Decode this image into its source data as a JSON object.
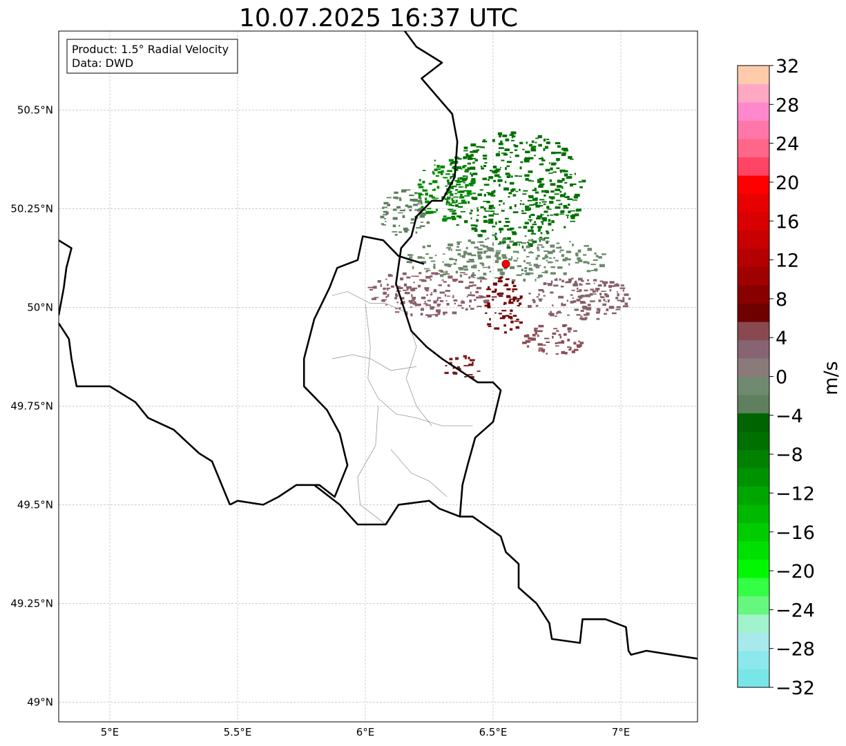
{
  "title": "10.07.2025 16:37 UTC",
  "info_box": {
    "line1": "Product: 1.5° Radial Velocity",
    "line2": "Data: DWD"
  },
  "map": {
    "lon_range": [
      4.8,
      7.3
    ],
    "lat_range": [
      48.95,
      50.7
    ],
    "lon_ticks": [
      {
        "value": 5.0,
        "label": "5°E"
      },
      {
        "value": 5.5,
        "label": "5.5°E"
      },
      {
        "value": 6.0,
        "label": "6°E"
      },
      {
        "value": 6.5,
        "label": "6.5°E"
      },
      {
        "value": 7.0,
        "label": "7°E"
      }
    ],
    "lat_ticks": [
      {
        "value": 49.0,
        "label": "49°N"
      },
      {
        "value": 49.25,
        "label": "49.25°N"
      },
      {
        "value": 49.5,
        "label": "49.5°N"
      },
      {
        "value": 49.75,
        "label": "49.75°N"
      },
      {
        "value": 50.0,
        "label": "50°N"
      },
      {
        "value": 50.25,
        "label": "50.25°N"
      },
      {
        "value": 50.5,
        "label": "50.5°N"
      }
    ],
    "grid": true,
    "radar_site": {
      "lon": 6.55,
      "lat": 50.11,
      "color": "#ff0000"
    },
    "borders": [
      [
        [
          6.12,
          50.73
        ],
        [
          6.2,
          50.66
        ],
        [
          6.3,
          50.62
        ],
        [
          6.22,
          50.58
        ],
        [
          6.3,
          50.52
        ],
        [
          6.34,
          50.49
        ],
        [
          6.36,
          50.42
        ],
        [
          6.35,
          50.33
        ],
        [
          6.3,
          50.27
        ],
        [
          6.26,
          50.27
        ],
        [
          6.2,
          50.23
        ],
        [
          6.18,
          50.18
        ],
        [
          6.14,
          50.15
        ],
        [
          6.12,
          50.06
        ],
        [
          6.15,
          50.0
        ],
        [
          6.18,
          49.94
        ],
        [
          6.24,
          49.9
        ],
        [
          6.3,
          49.87
        ],
        [
          6.37,
          49.84
        ],
        [
          6.44,
          49.81
        ],
        [
          6.5,
          49.81
        ],
        [
          6.53,
          49.79
        ],
        [
          6.5,
          49.71
        ],
        [
          6.43,
          49.67
        ],
        [
          6.4,
          49.6
        ],
        [
          6.38,
          49.55
        ],
        [
          6.37,
          49.47
        ]
      ],
      [
        [
          6.23,
          50.11
        ],
        [
          6.13,
          50.13
        ],
        [
          6.07,
          50.17
        ],
        [
          5.99,
          50.18
        ],
        [
          5.97,
          50.12
        ],
        [
          5.89,
          50.1
        ],
        [
          5.86,
          50.05
        ],
        [
          5.8,
          49.97
        ],
        [
          5.76,
          49.87
        ],
        [
          5.76,
          49.8
        ],
        [
          5.85,
          49.74
        ],
        [
          5.9,
          49.68
        ],
        [
          5.93,
          49.6
        ],
        [
          5.88,
          49.52
        ],
        [
          5.82,
          49.55
        ],
        [
          5.73,
          49.55
        ],
        [
          5.66,
          49.52
        ],
        [
          5.6,
          49.5
        ],
        [
          5.5,
          49.51
        ],
        [
          5.47,
          49.5
        ]
      ],
      [
        [
          5.8,
          49.55
        ],
        [
          5.9,
          49.5
        ],
        [
          5.97,
          49.45
        ],
        [
          6.08,
          49.45
        ],
        [
          6.13,
          49.5
        ],
        [
          6.25,
          49.51
        ],
        [
          6.29,
          49.49
        ],
        [
          6.37,
          49.47
        ],
        [
          6.42,
          49.47
        ],
        [
          6.53,
          49.42
        ],
        [
          6.55,
          49.38
        ],
        [
          6.6,
          49.35
        ],
        [
          6.6,
          49.29
        ],
        [
          6.67,
          49.25
        ],
        [
          6.72,
          49.2
        ],
        [
          6.73,
          49.16
        ],
        [
          6.84,
          49.15
        ],
        [
          6.85,
          49.21
        ],
        [
          6.94,
          49.21
        ],
        [
          7.02,
          49.19
        ],
        [
          7.03,
          49.13
        ],
        [
          7.04,
          49.12
        ],
        [
          7.1,
          49.13
        ],
        [
          7.2,
          49.12
        ],
        [
          7.3,
          49.11
        ]
      ],
      [
        [
          5.47,
          49.5
        ],
        [
          5.4,
          49.61
        ],
        [
          5.35,
          49.63
        ],
        [
          5.3,
          49.66
        ],
        [
          5.25,
          49.69
        ],
        [
          5.15,
          49.72
        ],
        [
          5.1,
          49.76
        ],
        [
          5.0,
          49.8
        ],
        [
          4.87,
          49.8
        ],
        [
          4.85,
          49.87
        ],
        [
          4.84,
          49.92
        ],
        [
          4.8,
          49.96
        ]
      ],
      [
        [
          4.8,
          49.98
        ],
        [
          4.82,
          50.05
        ],
        [
          4.83,
          50.1
        ],
        [
          4.85,
          50.15
        ],
        [
          4.8,
          50.17
        ]
      ]
    ],
    "regions": [
      [
        [
          5.87,
          50.03
        ],
        [
          5.93,
          50.04
        ],
        [
          6.02,
          50.01
        ],
        [
          6.08,
          50.01
        ],
        [
          6.15,
          49.99
        ]
      ],
      [
        [
          5.87,
          49.87
        ],
        [
          5.95,
          49.88
        ],
        [
          6.02,
          49.87
        ],
        [
          6.1,
          49.84
        ],
        [
          6.2,
          49.85
        ]
      ],
      [
        [
          6.0,
          50.01
        ],
        [
          6.02,
          49.9
        ],
        [
          6.01,
          49.82
        ],
        [
          6.05,
          49.77
        ],
        [
          6.12,
          49.73
        ],
        [
          6.2,
          49.72
        ],
        [
          6.3,
          49.7
        ],
        [
          6.42,
          49.7
        ]
      ],
      [
        [
          6.17,
          49.96
        ],
        [
          6.2,
          49.9
        ],
        [
          6.16,
          49.82
        ],
        [
          6.2,
          49.75
        ],
        [
          6.26,
          49.7
        ]
      ],
      [
        [
          6.05,
          49.75
        ],
        [
          6.04,
          49.65
        ],
        [
          5.97,
          49.57
        ],
        [
          5.98,
          49.5
        ],
        [
          6.08,
          49.45
        ]
      ],
      [
        [
          6.1,
          49.64
        ],
        [
          6.18,
          49.58
        ],
        [
          6.25,
          49.56
        ],
        [
          6.32,
          49.52
        ]
      ]
    ],
    "echoes": [
      {
        "lon_min": 6.3,
        "lon_max": 6.85,
        "lat_min": 50.15,
        "lat_max": 50.45,
        "color": "#007000"
      },
      {
        "lon_min": 6.2,
        "lon_max": 6.42,
        "lat_min": 50.22,
        "lat_max": 50.38,
        "color": "#008800"
      },
      {
        "lon_min": 6.05,
        "lon_max": 6.25,
        "lat_min": 50.18,
        "lat_max": 50.3,
        "color": "#5d7f5d"
      },
      {
        "lon_min": 6.15,
        "lon_max": 6.95,
        "lat_min": 50.07,
        "lat_max": 50.18,
        "color": "#6b896b"
      },
      {
        "lon_min": 6.0,
        "lon_max": 6.5,
        "lat_min": 49.98,
        "lat_max": 50.1,
        "color": "#8a5f6a"
      },
      {
        "lon_min": 6.62,
        "lon_max": 7.05,
        "lat_min": 49.97,
        "lat_max": 50.08,
        "color": "#86606a"
      },
      {
        "lon_min": 6.45,
        "lon_max": 6.62,
        "lat_min": 49.93,
        "lat_max": 50.08,
        "color": "#700000"
      },
      {
        "lon_min": 6.3,
        "lon_max": 6.45,
        "lat_min": 49.82,
        "lat_max": 49.88,
        "color": "#7a1a1a"
      },
      {
        "lon_min": 6.6,
        "lon_max": 6.85,
        "lat_min": 49.88,
        "lat_max": 49.96,
        "color": "#8a4e56"
      }
    ]
  },
  "colorbar": {
    "label": "m/s",
    "min": -32,
    "max": 32,
    "ticks": [
      32,
      28,
      24,
      20,
      16,
      12,
      8,
      4,
      0,
      -4,
      -8,
      -12,
      -16,
      -20,
      -24,
      -28,
      -32
    ],
    "tick_labels": [
      "32",
      "28",
      "24",
      "20",
      "16",
      "12",
      "8",
      "4",
      "0",
      "−4",
      "−8",
      "−12",
      "−16",
      "−20",
      "−24",
      "−28",
      "−32"
    ],
    "colors": [
      "#78e6e6",
      "#8ce8ea",
      "#a8e9ec",
      "#a0f3cc",
      "#66f77e",
      "#33ff44",
      "#00f800",
      "#00e000",
      "#00cc00",
      "#00b800",
      "#00a600",
      "#009300",
      "#008200",
      "#007000",
      "#006400",
      "#5f7f5f",
      "#6f8a6f",
      "#8a7a7a",
      "#866472",
      "#884a4e",
      "#6e0000",
      "#880000",
      "#a00000",
      "#b40000",
      "#c80000",
      "#d80000",
      "#e80000",
      "#ff0000",
      "#ff4466",
      "#ff6688",
      "#ff77a8",
      "#ff88cc",
      "#ffa8c4",
      "#ffcbaa"
    ]
  }
}
